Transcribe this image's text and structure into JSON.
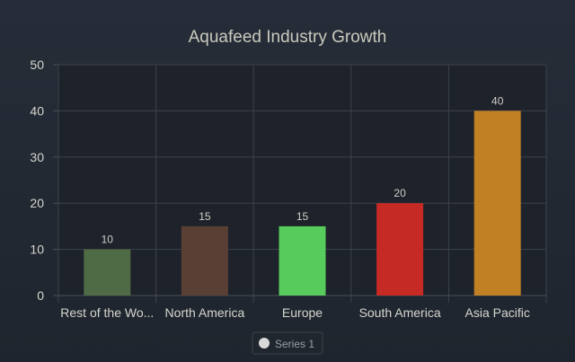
{
  "chart_data": {
    "type": "bar",
    "title": "Aquafeed Industry Growth",
    "xlabel": "",
    "ylabel": "",
    "categories": [
      "Rest of the Wo...",
      "North America",
      "Europe",
      "South America",
      "Asia Pacific"
    ],
    "series": [
      {
        "name": "Series 1",
        "values": [
          10,
          15,
          15,
          20,
          40
        ],
        "colors": [
          "#4f6b45",
          "#5a4034",
          "#57cc5d",
          "#c62a25",
          "#c18024"
        ]
      }
    ],
    "ylim": [
      0,
      50
    ],
    "yticks": [
      0,
      10,
      20,
      30,
      40,
      50
    ],
    "grid": true,
    "data_labels": true,
    "legend": {
      "position": "bottom-center",
      "items": [
        "Series 1"
      ],
      "marker_color": "#d9d9d9"
    }
  }
}
